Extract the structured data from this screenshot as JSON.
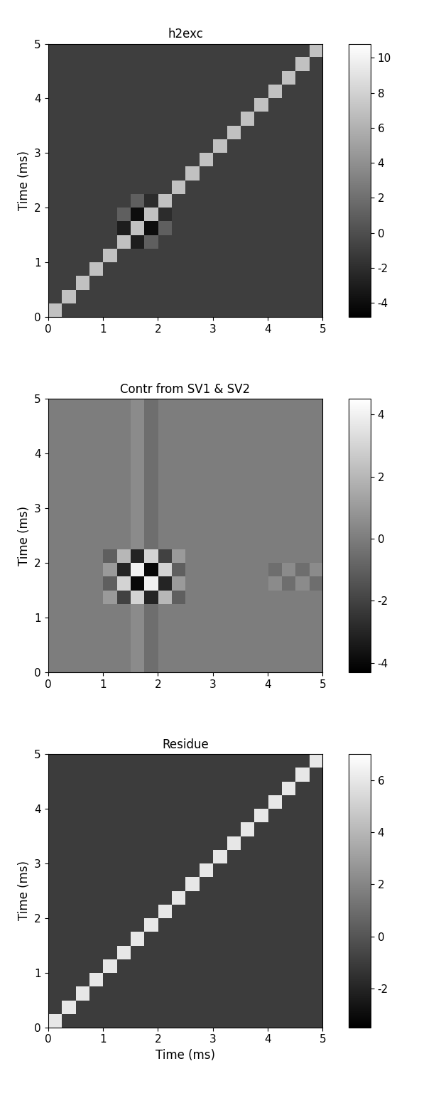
{
  "chart_data": [
    {
      "type": "heatmap",
      "title": "h2exc",
      "y_label": "Time (ms)",
      "xlim": [
        0,
        5
      ],
      "ylim": [
        0,
        5
      ],
      "xticks": [
        0,
        1,
        2,
        3,
        4,
        5
      ],
      "yticks": [
        0,
        1,
        2,
        3,
        4,
        5
      ],
      "color": "gray",
      "color_range": [
        -4.8,
        10.8
      ],
      "color_ticks": [
        -4,
        -2,
        0,
        2,
        4,
        6,
        8,
        10
      ],
      "cells": [
        [
          7,
          -1,
          -1,
          -1,
          -1,
          -1,
          -1,
          -1,
          -1,
          -1,
          -1,
          -1,
          -1,
          -1,
          -1,
          -1,
          -1,
          -1,
          -1,
          -1
        ],
        [
          -1,
          7,
          -1,
          -1,
          -1,
          -1,
          -1,
          -1,
          -1,
          -1,
          -1,
          -1,
          -1,
          -1,
          -1,
          -1,
          -1,
          -1,
          -1,
          -1
        ],
        [
          -1,
          -1,
          7,
          -1,
          -1,
          -1,
          -1,
          -1,
          -1,
          -1,
          -1,
          -1,
          -1,
          -1,
          -1,
          -1,
          -1,
          -1,
          -1,
          -1
        ],
        [
          -1,
          -1,
          -1,
          7,
          -1,
          -1,
          -1,
          -1,
          -1,
          -1,
          -1,
          -1,
          -1,
          -1,
          -1,
          -1,
          -1,
          -1,
          -1,
          -1
        ],
        [
          -1,
          -1,
          -1,
          -1,
          7,
          -1,
          -1,
          -1,
          -1,
          -1,
          -1,
          -1,
          -1,
          -1,
          -1,
          -1,
          -1,
          -1,
          -1,
          -1
        ],
        [
          -1,
          -1,
          -1,
          -1,
          -1,
          7,
          -3,
          1,
          -1,
          -1,
          -1,
          -1,
          -1,
          -1,
          -1,
          -1,
          -1,
          -1,
          -1,
          -1
        ],
        [
          -1,
          -1,
          -1,
          -1,
          -1,
          -3,
          7,
          -4,
          1,
          -1,
          -1,
          -1,
          -1,
          -1,
          -1,
          -1,
          -1,
          -1,
          -1,
          -1
        ],
        [
          -1,
          -1,
          -1,
          -1,
          -1,
          1,
          -4,
          7,
          -2,
          -1,
          -1,
          -1,
          -1,
          -1,
          -1,
          -1,
          -1,
          -1,
          -1,
          -1
        ],
        [
          -1,
          -1,
          -1,
          -1,
          -1,
          -1,
          1,
          -2,
          7,
          -1,
          -1,
          -1,
          -1,
          -1,
          -1,
          -1,
          -1,
          -1,
          -1,
          -1
        ],
        [
          -1,
          -1,
          -1,
          -1,
          -1,
          -1,
          -1,
          -1,
          -1,
          7,
          -1,
          -1,
          -1,
          -1,
          -1,
          -1,
          -1,
          -1,
          -1,
          -1
        ],
        [
          -1,
          -1,
          -1,
          -1,
          -1,
          -1,
          -1,
          -1,
          -1,
          -1,
          7,
          -1,
          -1,
          -1,
          -1,
          -1,
          -1,
          -1,
          -1,
          -1
        ],
        [
          -1,
          -1,
          -1,
          -1,
          -1,
          -1,
          -1,
          -1,
          -1,
          -1,
          -1,
          7,
          -1,
          -1,
          -1,
          -1,
          -1,
          -1,
          -1,
          -1
        ],
        [
          -1,
          -1,
          -1,
          -1,
          -1,
          -1,
          -1,
          -1,
          -1,
          -1,
          -1,
          -1,
          7,
          -1,
          -1,
          -1,
          -1,
          -1,
          -1,
          -1
        ],
        [
          -1,
          -1,
          -1,
          -1,
          -1,
          -1,
          -1,
          -1,
          -1,
          -1,
          -1,
          -1,
          -1,
          7,
          -1,
          -1,
          -1,
          -1,
          -1,
          -1
        ],
        [
          -1,
          -1,
          -1,
          -1,
          -1,
          -1,
          -1,
          -1,
          -1,
          -1,
          -1,
          -1,
          -1,
          -1,
          7,
          -1,
          -1,
          -1,
          -1,
          -1
        ],
        [
          -1,
          -1,
          -1,
          -1,
          -1,
          -1,
          -1,
          -1,
          -1,
          -1,
          -1,
          -1,
          -1,
          -1,
          -1,
          7,
          -1,
          -1,
          -1,
          -1
        ],
        [
          -1,
          -1,
          -1,
          -1,
          -1,
          -1,
          -1,
          -1,
          -1,
          -1,
          -1,
          -1,
          -1,
          -1,
          -1,
          -1,
          7,
          -1,
          -1,
          -1
        ],
        [
          -1,
          -1,
          -1,
          -1,
          -1,
          -1,
          -1,
          -1,
          -1,
          -1,
          -1,
          -1,
          -1,
          -1,
          -1,
          -1,
          -1,
          7,
          -1,
          -1
        ],
        [
          -1,
          -1,
          -1,
          -1,
          -1,
          -1,
          -1,
          -1,
          -1,
          -1,
          -1,
          -1,
          -1,
          -1,
          -1,
          -1,
          -1,
          -1,
          7,
          -1
        ],
        [
          -1,
          -1,
          -1,
          -1,
          -1,
          -1,
          -1,
          -1,
          -1,
          -1,
          -1,
          -1,
          -1,
          -1,
          -1,
          -1,
          -1,
          -1,
          -1,
          7
        ]
      ]
    },
    {
      "type": "heatmap",
      "title": "Contr from SV1 & SV2",
      "y_label": "Time (ms)",
      "xlim": [
        0,
        5
      ],
      "ylim": [
        0,
        5
      ],
      "xticks": [
        0,
        1,
        2,
        3,
        4,
        5
      ],
      "yticks": [
        0,
        1,
        2,
        3,
        4,
        5
      ],
      "color": "gray",
      "color_range": [
        -4.3,
        4.5
      ],
      "color_ticks": [
        -4,
        -2,
        0,
        2,
        4
      ],
      "cells": [
        [
          0,
          0,
          0,
          0,
          0,
          0,
          0.5,
          -0.5,
          0,
          0,
          0,
          0,
          0,
          0,
          0,
          0,
          0,
          0,
          0,
          0
        ],
        [
          0,
          0,
          0,
          0,
          0,
          0,
          0.5,
          -0.5,
          0,
          0,
          0,
          0,
          0,
          0,
          0,
          0,
          0,
          0,
          0,
          0
        ],
        [
          0,
          0,
          0,
          0,
          0,
          0,
          0.5,
          -0.5,
          0,
          0,
          0,
          0,
          0,
          0,
          0,
          0,
          0,
          0,
          0,
          0
        ],
        [
          0,
          0,
          0,
          0,
          0,
          0,
          0.5,
          -0.5,
          0,
          0,
          0,
          0,
          0,
          0,
          0,
          0,
          0,
          0,
          0,
          0
        ],
        [
          0,
          0,
          0,
          0,
          0,
          0,
          0.5,
          -0.5,
          0,
          0,
          0,
          0,
          0,
          0,
          0,
          0,
          0,
          0,
          0,
          0
        ],
        [
          0,
          0,
          0,
          0,
          1,
          -2,
          3,
          -3,
          2,
          -1,
          0,
          0,
          0,
          0,
          0,
          0,
          0,
          0,
          0,
          0
        ],
        [
          0,
          0,
          0,
          0,
          -1,
          3,
          -4,
          4,
          -3,
          1,
          0,
          0,
          0,
          0,
          0,
          0,
          0.5,
          -0.5,
          0.5,
          -0.5
        ],
        [
          0,
          0,
          0,
          0,
          1,
          -3,
          4,
          -4,
          3,
          -1,
          0,
          0,
          0,
          0,
          0,
          0,
          -0.5,
          0.5,
          -0.5,
          0.5
        ],
        [
          0,
          0,
          0,
          0,
          -1,
          2,
          -3,
          3,
          -2,
          1,
          0,
          0,
          0,
          0,
          0,
          0,
          0,
          0,
          0,
          0
        ],
        [
          0,
          0,
          0,
          0,
          0,
          0,
          0.5,
          -0.5,
          0,
          0,
          0,
          0,
          0,
          0,
          0,
          0,
          0,
          0,
          0,
          0
        ],
        [
          0,
          0,
          0,
          0,
          0,
          0,
          0.5,
          -0.5,
          0,
          0,
          0,
          0,
          0,
          0,
          0,
          0,
          0,
          0,
          0,
          0
        ],
        [
          0,
          0,
          0,
          0,
          0,
          0,
          0.5,
          -0.5,
          0,
          0,
          0,
          0,
          0,
          0,
          0,
          0,
          0,
          0,
          0,
          0
        ],
        [
          0,
          0,
          0,
          0,
          0,
          0,
          0.5,
          -0.5,
          0,
          0,
          0,
          0,
          0,
          0,
          0,
          0,
          0,
          0,
          0,
          0
        ],
        [
          0,
          0,
          0,
          0,
          0,
          0,
          0.5,
          -0.5,
          0,
          0,
          0,
          0,
          0,
          0,
          0,
          0,
          0,
          0,
          0,
          0
        ],
        [
          0,
          0,
          0,
          0,
          0,
          0,
          0.5,
          -0.5,
          0,
          0,
          0,
          0,
          0,
          0,
          0,
          0,
          0,
          0,
          0,
          0
        ],
        [
          0,
          0,
          0,
          0,
          0,
          0,
          0.5,
          -0.5,
          0,
          0,
          0,
          0,
          0,
          0,
          0,
          0,
          0,
          0,
          0,
          0
        ],
        [
          0,
          0,
          0,
          0,
          0,
          0,
          0.5,
          -0.5,
          0,
          0,
          0,
          0,
          0,
          0,
          0,
          0,
          0,
          0,
          0,
          0
        ],
        [
          0,
          0,
          0,
          0,
          0,
          0,
          0.5,
          -0.5,
          0,
          0,
          0,
          0,
          0,
          0,
          0,
          0,
          0,
          0,
          0,
          0
        ],
        [
          0,
          0,
          0,
          0,
          0,
          0,
          0.5,
          -0.5,
          0,
          0,
          0,
          0,
          0,
          0,
          0,
          0,
          0,
          0,
          0,
          0
        ],
        [
          0,
          0,
          0,
          0,
          0,
          0,
          0.5,
          -0.5,
          0,
          0,
          0,
          0,
          0,
          0,
          0,
          0,
          0,
          0,
          0,
          0
        ]
      ]
    },
    {
      "type": "heatmap",
      "title": "Residue",
      "y_label": "Time (ms)",
      "x_label": "Time (ms)",
      "xlim": [
        0,
        5
      ],
      "ylim": [
        0,
        5
      ],
      "xticks": [
        0,
        1,
        2,
        3,
        4,
        5
      ],
      "yticks": [
        0,
        1,
        2,
        3,
        4,
        5
      ],
      "color": "gray",
      "color_range": [
        -3.5,
        7.0
      ],
      "color_ticks": [
        -2,
        0,
        2,
        4,
        6
      ],
      "cells": [
        [
          6,
          -1,
          -1,
          -1,
          -1,
          -1,
          -1,
          -1,
          -1,
          -1,
          -1,
          -1,
          -1,
          -1,
          -1,
          -1,
          -1,
          -1,
          -1,
          -1
        ],
        [
          -1,
          6,
          -1,
          -1,
          -1,
          -1,
          -1,
          -1,
          -1,
          -1,
          -1,
          -1,
          -1,
          -1,
          -1,
          -1,
          -1,
          -1,
          -1,
          -1
        ],
        [
          -1,
          -1,
          6,
          -1,
          -1,
          -1,
          -1,
          -1,
          -1,
          -1,
          -1,
          -1,
          -1,
          -1,
          -1,
          -1,
          -1,
          -1,
          -1,
          -1
        ],
        [
          -1,
          -1,
          -1,
          6,
          -1,
          -1,
          -1,
          -1,
          -1,
          -1,
          -1,
          -1,
          -1,
          -1,
          -1,
          -1,
          -1,
          -1,
          -1,
          -1
        ],
        [
          -1,
          -1,
          -1,
          -1,
          6,
          -1,
          -1,
          -1,
          -1,
          -1,
          -1,
          -1,
          -1,
          -1,
          -1,
          -1,
          -1,
          -1,
          -1,
          -1
        ],
        [
          -1,
          -1,
          -1,
          -1,
          -1,
          6,
          -1,
          -1,
          -1,
          -1,
          -1,
          -1,
          -1,
          -1,
          -1,
          -1,
          -1,
          -1,
          -1,
          -1
        ],
        [
          -1,
          -1,
          -1,
          -1,
          -1,
          -1,
          6,
          -1,
          -1,
          -1,
          -1,
          -1,
          -1,
          -1,
          -1,
          -1,
          -1,
          -1,
          -1,
          -1
        ],
        [
          -1,
          -1,
          -1,
          -1,
          -1,
          -1,
          -1,
          6,
          -1,
          -1,
          -1,
          -1,
          -1,
          -1,
          -1,
          -1,
          -1,
          -1,
          -1,
          -1
        ],
        [
          -1,
          -1,
          -1,
          -1,
          -1,
          -1,
          -1,
          -1,
          6,
          -1,
          -1,
          -1,
          -1,
          -1,
          -1,
          -1,
          -1,
          -1,
          -1,
          -1
        ],
        [
          -1,
          -1,
          -1,
          -1,
          -1,
          -1,
          -1,
          -1,
          -1,
          6,
          -1,
          -1,
          -1,
          -1,
          -1,
          -1,
          -1,
          -1,
          -1,
          -1
        ],
        [
          -1,
          -1,
          -1,
          -1,
          -1,
          -1,
          -1,
          -1,
          -1,
          -1,
          6,
          -1,
          -1,
          -1,
          -1,
          -1,
          -1,
          -1,
          -1,
          -1
        ],
        [
          -1,
          -1,
          -1,
          -1,
          -1,
          -1,
          -1,
          -1,
          -1,
          -1,
          -1,
          6,
          -1,
          -1,
          -1,
          -1,
          -1,
          -1,
          -1,
          -1
        ],
        [
          -1,
          -1,
          -1,
          -1,
          -1,
          -1,
          -1,
          -1,
          -1,
          -1,
          -1,
          -1,
          6,
          -1,
          -1,
          -1,
          -1,
          -1,
          -1,
          -1
        ],
        [
          -1,
          -1,
          -1,
          -1,
          -1,
          -1,
          -1,
          -1,
          -1,
          -1,
          -1,
          -1,
          -1,
          6,
          -1,
          -1,
          -1,
          -1,
          -1,
          -1
        ],
        [
          -1,
          -1,
          -1,
          -1,
          -1,
          -1,
          -1,
          -1,
          -1,
          -1,
          -1,
          -1,
          -1,
          -1,
          6,
          -1,
          -1,
          -1,
          -1,
          -1
        ],
        [
          -1,
          -1,
          -1,
          -1,
          -1,
          -1,
          -1,
          -1,
          -1,
          -1,
          -1,
          -1,
          -1,
          -1,
          -1,
          6,
          -1,
          -1,
          -1,
          -1
        ],
        [
          -1,
          -1,
          -1,
          -1,
          -1,
          -1,
          -1,
          -1,
          -1,
          -1,
          -1,
          -1,
          -1,
          -1,
          -1,
          -1,
          6,
          -1,
          -1,
          -1
        ],
        [
          -1,
          -1,
          -1,
          -1,
          -1,
          -1,
          -1,
          -1,
          -1,
          -1,
          -1,
          -1,
          -1,
          -1,
          -1,
          -1,
          -1,
          6,
          -1,
          -1
        ],
        [
          -1,
          -1,
          -1,
          -1,
          -1,
          -1,
          -1,
          -1,
          -1,
          -1,
          -1,
          -1,
          -1,
          -1,
          -1,
          -1,
          -1,
          -1,
          6,
          -1
        ],
        [
          -1,
          -1,
          -1,
          -1,
          -1,
          -1,
          -1,
          -1,
          -1,
          -1,
          -1,
          -1,
          -1,
          -1,
          -1,
          -1,
          -1,
          -1,
          -1,
          6
        ]
      ]
    }
  ]
}
